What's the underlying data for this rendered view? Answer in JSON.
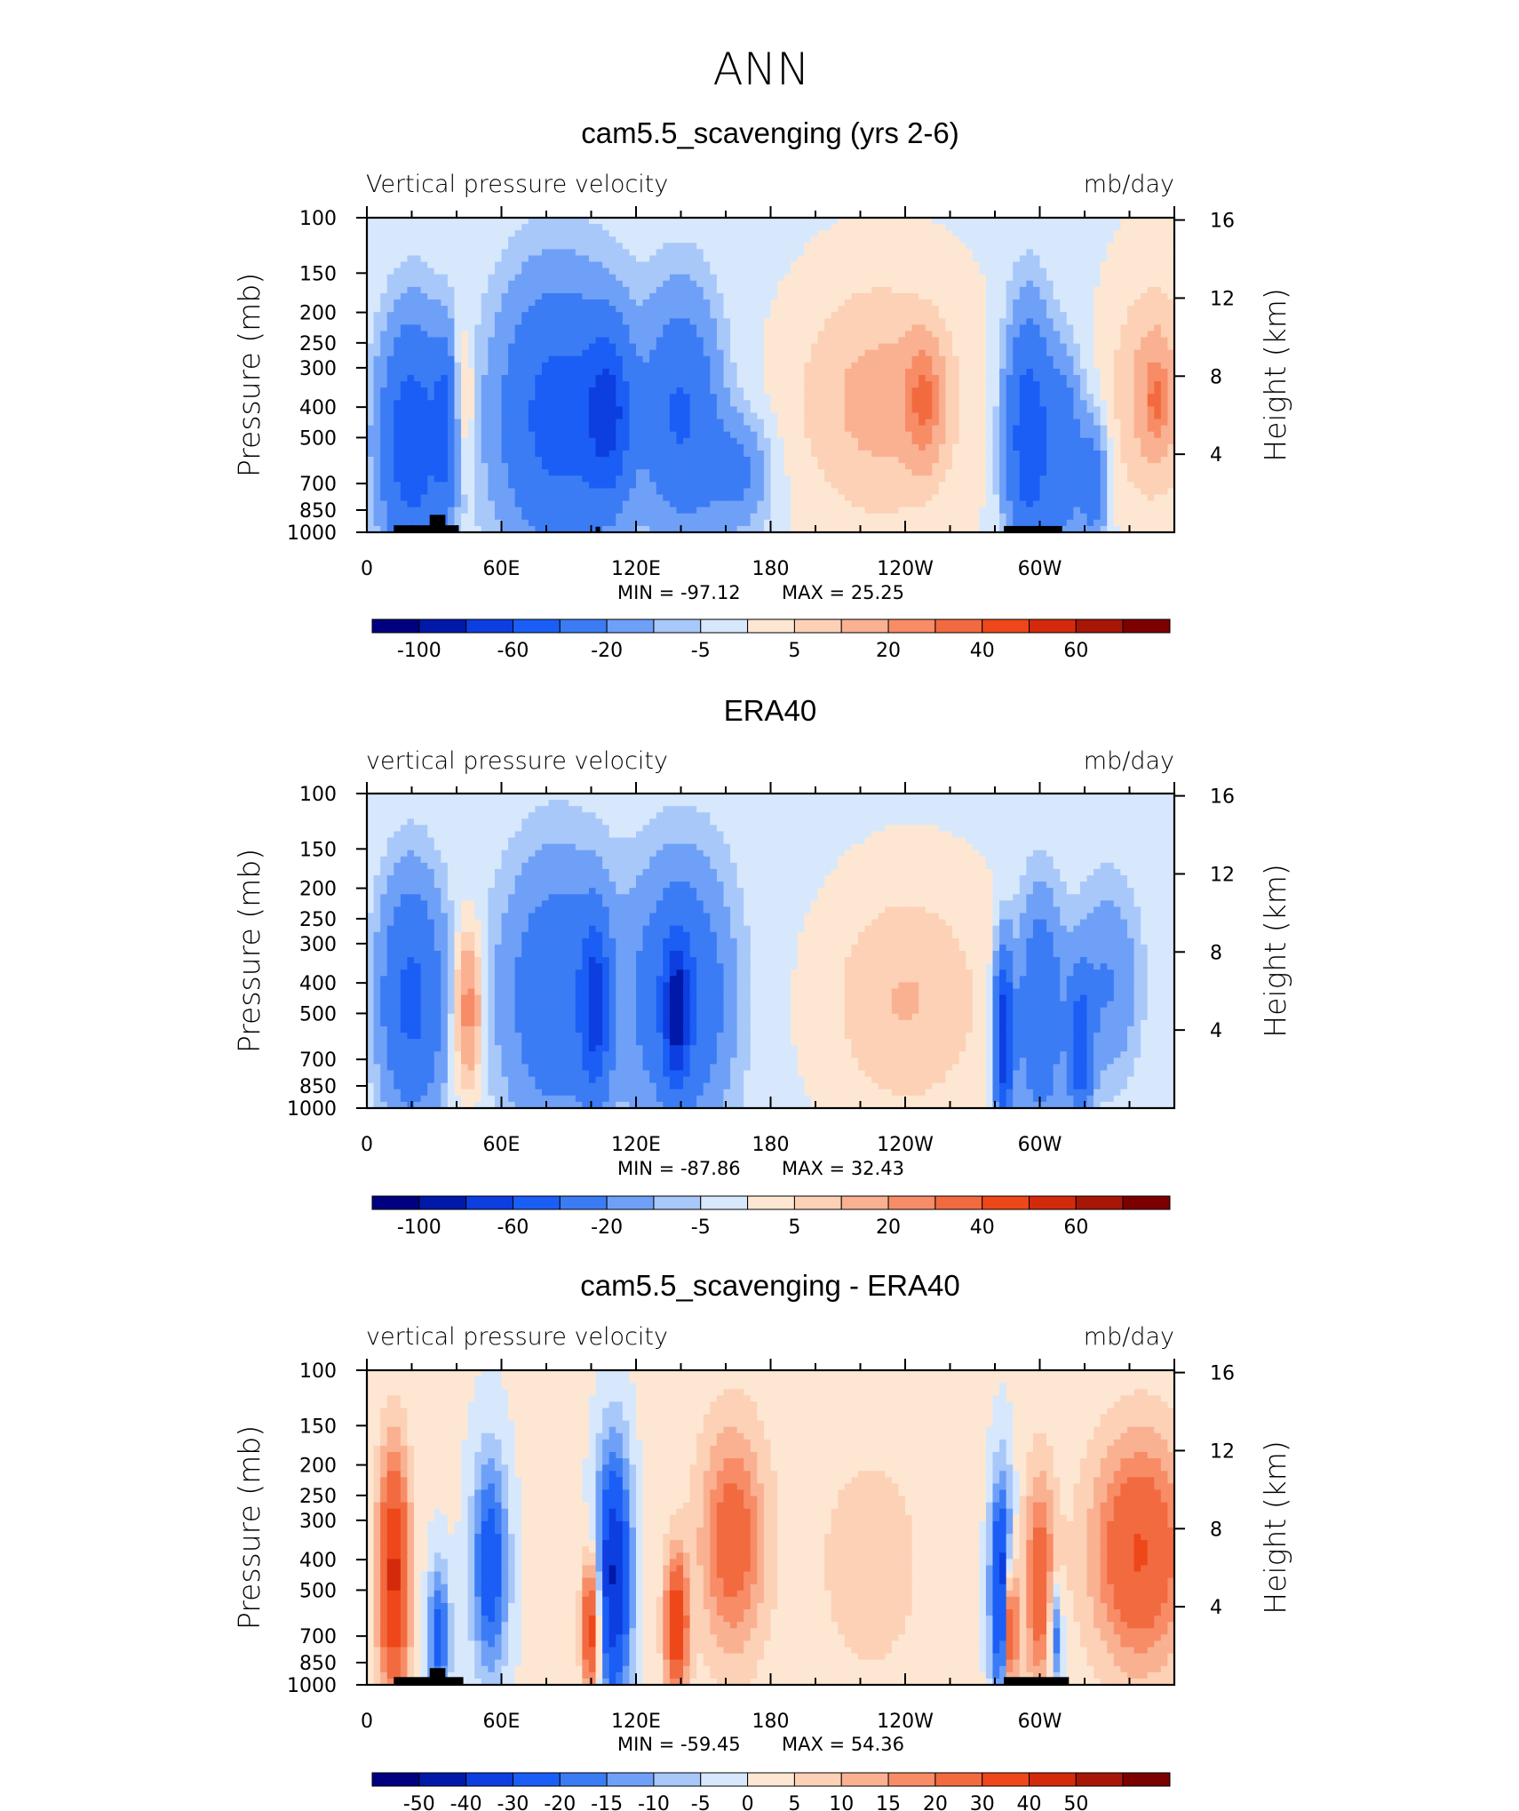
{
  "figure_title": "ANN",
  "colors": {
    "blues": [
      "#000080",
      "#0019a8",
      "#0d3ee0",
      "#1a5ef5",
      "#3b7cf5",
      "#6fa0f7",
      "#a8c8fa",
      "#d7e8fc"
    ],
    "reds": [
      "#fde7d3",
      "#fcd1b6",
      "#f9b192",
      "#f78c67",
      "#f26a3f",
      "#ee4719",
      "#d42a0c",
      "#a81607",
      "#7d0000"
    ],
    "topography": "#000000"
  },
  "chart_data": [
    {
      "type": "heatmap",
      "title": "cam5.5_scavenging (yrs 2-6)",
      "left_label": "Vertical pressure velocity",
      "right_label": "mb/day",
      "ylabel": "Pressure (mb)",
      "y2label": "Height (km)",
      "x_ticks": [
        "0",
        "60E",
        "120E",
        "180",
        "120W",
        "60W"
      ],
      "y_ticks": [
        "100",
        "150",
        "200",
        "250",
        "300",
        "400",
        "500",
        "700",
        "850",
        "1000"
      ],
      "y2_ticks": [
        "16",
        "12",
        "8",
        "4"
      ],
      "ylim": [
        1000,
        100
      ],
      "xlim": [
        0,
        360
      ],
      "min_label": "MIN = -97.12",
      "max_label": "MAX = 25.25",
      "colorbar": {
        "levels": [
          "-100",
          "-60",
          "-20",
          "-5",
          "5",
          "20",
          "40",
          "60"
        ]
      },
      "features": [
        {
          "lon": 20,
          "p": 520,
          "w": 14,
          "h": 0.85,
          "v": -55
        },
        {
          "lon": 35,
          "p": 450,
          "w": 5,
          "h": 0.6,
          "v": -35
        },
        {
          "lon": 43,
          "p": 380,
          "w": 5,
          "h": 0.5,
          "v": 14
        },
        {
          "lon": 85,
          "p": 430,
          "w": 26,
          "h": 0.95,
          "v": -48
        },
        {
          "lon": 108,
          "p": 420,
          "w": 10,
          "h": 0.6,
          "v": -50
        },
        {
          "lon": 140,
          "p": 420,
          "w": 16,
          "h": 0.8,
          "v": -40
        },
        {
          "lon": 165,
          "p": 650,
          "w": 14,
          "h": 0.4,
          "v": -22
        },
        {
          "lon": 228,
          "p": 380,
          "w": 40,
          "h": 0.95,
          "v": 14
        },
        {
          "lon": 248,
          "p": 380,
          "w": 8,
          "h": 0.4,
          "v": 26
        },
        {
          "lon": 295,
          "p": 500,
          "w": 10,
          "h": 0.85,
          "v": -55
        },
        {
          "lon": 311,
          "p": 560,
          "w": 8,
          "h": 0.65,
          "v": -32
        },
        {
          "lon": 324,
          "p": 700,
          "w": 6,
          "h": 0.45,
          "v": -28
        },
        {
          "lon": 350,
          "p": 360,
          "w": 18,
          "h": 0.8,
          "v": 14
        },
        {
          "lon": 352,
          "p": 380,
          "w": 5,
          "h": 0.3,
          "v": 22
        },
        {
          "lon": 180,
          "p": 300,
          "w": 160,
          "h": 3,
          "v": -2
        }
      ],
      "topography": [
        {
          "lon0": 12,
          "lon1": 41,
          "p_top": 950
        },
        {
          "lon0": 28,
          "lon1": 35,
          "p_top": 880
        },
        {
          "lon0": 102,
          "lon1": 104,
          "p_top": 960
        },
        {
          "lon0": 284,
          "lon1": 310,
          "p_top": 955
        }
      ]
    },
    {
      "type": "heatmap",
      "title": "ERA40",
      "left_label": "vertical pressure velocity",
      "right_label": "mb/day",
      "ylabel": "Pressure (mb)",
      "y2label": "Height (km)",
      "x_ticks": [
        "0",
        "60E",
        "120E",
        "180",
        "120W",
        "60W"
      ],
      "y_ticks": [
        "100",
        "150",
        "200",
        "250",
        "300",
        "400",
        "500",
        "700",
        "850",
        "1000"
      ],
      "y2_ticks": [
        "16",
        "12",
        "8",
        "4"
      ],
      "ylim": [
        1000,
        100
      ],
      "xlim": [
        0,
        360
      ],
      "min_label": "MIN = -87.86",
      "max_label": "MAX = 32.43",
      "colorbar": {
        "levels": [
          "-100",
          "-60",
          "-20",
          "-5",
          "5",
          "20",
          "40",
          "60"
        ]
      },
      "features": [
        {
          "lon": 20,
          "p": 450,
          "w": 14,
          "h": 0.85,
          "v": -45
        },
        {
          "lon": 45,
          "p": 480,
          "w": 6,
          "h": 0.55,
          "v": 28
        },
        {
          "lon": 85,
          "p": 440,
          "w": 24,
          "h": 0.95,
          "v": -35
        },
        {
          "lon": 102,
          "p": 480,
          "w": 6,
          "h": 0.6,
          "v": -55
        },
        {
          "lon": 140,
          "p": 450,
          "w": 20,
          "h": 0.9,
          "v": -42
        },
        {
          "lon": 138,
          "p": 500,
          "w": 5,
          "h": 0.5,
          "v": -60
        },
        {
          "lon": 240,
          "p": 450,
          "w": 38,
          "h": 0.9,
          "v": 12
        },
        {
          "lon": 284,
          "p": 600,
          "w": 4,
          "h": 0.6,
          "v": -80
        },
        {
          "lon": 300,
          "p": 500,
          "w": 10,
          "h": 0.8,
          "v": -40
        },
        {
          "lon": 318,
          "p": 650,
          "w": 5,
          "h": 0.5,
          "v": -55
        },
        {
          "lon": 330,
          "p": 400,
          "w": 14,
          "h": 0.7,
          "v": -20
        },
        {
          "lon": 180,
          "p": 300,
          "w": 160,
          "h": 3,
          "v": -2
        }
      ],
      "topography": []
    },
    {
      "type": "heatmap",
      "title": "cam5.5_scavenging - ERA40",
      "left_label": "vertical pressure velocity",
      "right_label": "mb/day",
      "ylabel": "Pressure (mb)",
      "y2label": "Height (km)",
      "x_ticks": [
        "0",
        "60E",
        "120E",
        "180",
        "120W",
        "60W"
      ],
      "y_ticks": [
        "100",
        "150",
        "200",
        "250",
        "300",
        "400",
        "500",
        "700",
        "850",
        "1000"
      ],
      "y2_ticks": [
        "16",
        "12",
        "8",
        "4"
      ],
      "ylim": [
        1000,
        100
      ],
      "xlim": [
        0,
        360
      ],
      "min_label": "MIN = -59.45",
      "max_label": "MAX = 54.36",
      "colorbar": {
        "levels": [
          "-50",
          "-40",
          "-30",
          "-20",
          "-15",
          "-10",
          "-5",
          "0",
          "5",
          "10",
          "15",
          "20",
          "30",
          "40",
          "50"
        ]
      },
      "features": [
        {
          "lon": 12,
          "p": 450,
          "w": 7,
          "h": 0.9,
          "v": 42
        },
        {
          "lon": 32,
          "p": 700,
          "w": 5,
          "h": 0.5,
          "v": -25
        },
        {
          "lon": 55,
          "p": 420,
          "w": 8,
          "h": 0.8,
          "v": -28
        },
        {
          "lon": 100,
          "p": 650,
          "w": 4,
          "h": 0.5,
          "v": 40
        },
        {
          "lon": 110,
          "p": 450,
          "w": 8,
          "h": 0.95,
          "v": -42
        },
        {
          "lon": 138,
          "p": 650,
          "w": 5,
          "h": 0.5,
          "v": 38
        },
        {
          "lon": 163,
          "p": 350,
          "w": 14,
          "h": 0.8,
          "v": 24
        },
        {
          "lon": 225,
          "p": 420,
          "w": 25,
          "h": 0.9,
          "v": 6
        },
        {
          "lon": 283,
          "p": 500,
          "w": 5,
          "h": 0.8,
          "v": -40
        },
        {
          "lon": 287,
          "p": 650,
          "w": 3,
          "h": 0.5,
          "v": 45
        },
        {
          "lon": 300,
          "p": 480,
          "w": 7,
          "h": 0.8,
          "v": 25
        },
        {
          "lon": 307,
          "p": 700,
          "w": 3,
          "h": 0.4,
          "v": -25
        },
        {
          "lon": 345,
          "p": 380,
          "w": 22,
          "h": 0.85,
          "v": 30
        },
        {
          "lon": 180,
          "p": 300,
          "w": 160,
          "h": 3,
          "v": 2
        }
      ],
      "topography": [
        {
          "lon0": 12,
          "lon1": 43,
          "p_top": 945
        },
        {
          "lon0": 28,
          "lon1": 35,
          "p_top": 885
        },
        {
          "lon0": 284,
          "lon1": 313,
          "p_top": 945
        }
      ]
    }
  ]
}
